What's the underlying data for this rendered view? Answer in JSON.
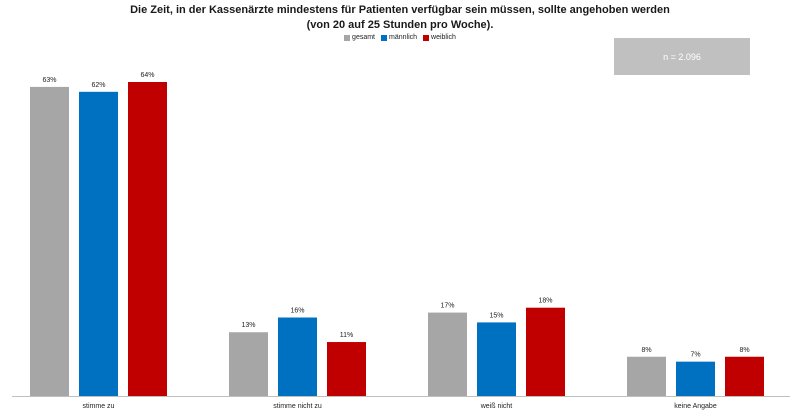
{
  "chart_data": {
    "type": "bar",
    "title_lines": [
      "Die Zeit, in der Kassenärzte mindestens für Patienten verfügbar sein müssen, sollte angehoben werden",
      "(von 20 auf 25 Stunden pro Woche)."
    ],
    "categories": [
      "stimme zu",
      "stimme nicht zu",
      "weiß nicht",
      "keine Angabe"
    ],
    "series": [
      {
        "name": "gesamt",
        "color": "#a6a6a6",
        "values": [
          63,
          13,
          17,
          8
        ],
        "labels": [
          "63%",
          "13%",
          "17%",
          "8%"
        ]
      },
      {
        "name": "männlich",
        "color": "#0070c0",
        "values": [
          62,
          16,
          15,
          7
        ],
        "labels": [
          "62%",
          "16%",
          "15%",
          "7%"
        ]
      },
      {
        "name": "weiblich",
        "color": "#c00000",
        "values": [
          64,
          11,
          18,
          8
        ],
        "labels": [
          "64%",
          "11%",
          "18%",
          "8%"
        ]
      }
    ],
    "ylim": [
      0,
      64
    ],
    "legend_position": "top-center",
    "annotation": "n = 2.096",
    "grid": false
  }
}
